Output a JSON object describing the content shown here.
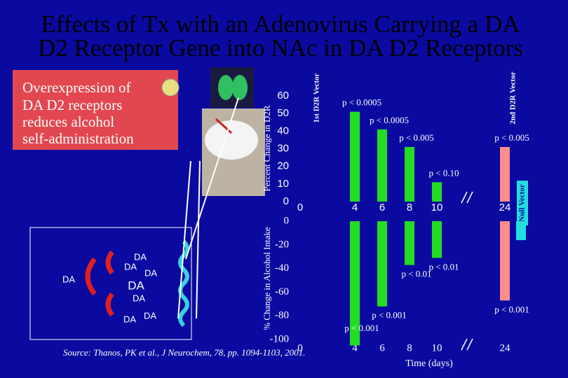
{
  "title": [
    "Effects of Tx with an Adenovirus Carrying a DA",
    "D2 Receptor Gene into NAc in DA D2 Receptors"
  ],
  "callout": [
    "Overexpression of",
    "DA D2 receptors",
    "reduces alcohol",
    "self-administration"
  ],
  "diagram": {
    "labels": [
      "DA",
      "DA",
      "DA",
      "DA",
      "DA",
      "DA",
      "DA",
      "DA"
    ]
  },
  "source": "Source: Thanos, PK et al., J Neurochem, 78, pp. 1094-1103, 2001.",
  "chart_data": [
    {
      "type": "bar",
      "ylabel": "Percent Change in D2R",
      "ylim": [
        0,
        60
      ],
      "yticks": [
        0,
        10,
        20,
        30,
        40,
        50,
        60
      ],
      "xlim": [
        0,
        24
      ],
      "xticks": [
        0,
        4,
        6,
        8,
        10,
        24
      ],
      "series": [
        {
          "name": "1st D2R Vector",
          "color": "#22dd22",
          "x": [
            4,
            6,
            8,
            10
          ],
          "values": [
            51,
            41,
            31,
            11
          ],
          "p_values": [
            "p < 0.0005",
            "p < 0.0005",
            "p < 0.005",
            "p < 0.10"
          ]
        },
        {
          "name": "2nd D2R Vector",
          "color": "#ff8c8c",
          "x": [
            24
          ],
          "values": [
            31
          ],
          "p_values": [
            "p < 0.005"
          ]
        }
      ]
    },
    {
      "type": "bar",
      "ylabel": "% Change in Alcohol Intake",
      "xlabel": "Time (days)",
      "ylim": [
        -110,
        0
      ],
      "yticks": [
        -100,
        -80,
        -60,
        -40,
        -20,
        0
      ],
      "xlim": [
        0,
        24
      ],
      "xticks": [
        0,
        4,
        6,
        8,
        10,
        24
      ],
      "series": [
        {
          "color": "#22dd22",
          "x": [
            4,
            6,
            8,
            10
          ],
          "values": [
            -105,
            -72,
            -37,
            -31
          ],
          "p_values": [
            "p < 0.001",
            "p < 0.001",
            "p < 0.01",
            "p < 0.01"
          ]
        },
        {
          "color": "#ff8c8c",
          "x": [
            24
          ],
          "values": [
            -67
          ],
          "p_values": [
            "p < 0.001"
          ]
        },
        {
          "name": "Null Vector",
          "color": "#22dddd",
          "x": [
            24
          ],
          "values": [
            -16
          ]
        }
      ]
    }
  ]
}
